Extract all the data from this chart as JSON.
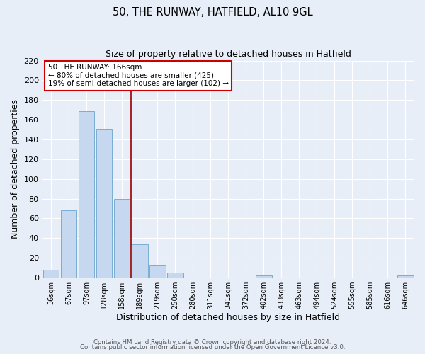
{
  "title": "50, THE RUNWAY, HATFIELD, AL10 9GL",
  "subtitle": "Size of property relative to detached houses in Hatfield",
  "xlabel": "Distribution of detached houses by size in Hatfield",
  "ylabel": "Number of detached properties",
  "bar_labels": [
    "36sqm",
    "67sqm",
    "97sqm",
    "128sqm",
    "158sqm",
    "189sqm",
    "219sqm",
    "250sqm",
    "280sqm",
    "311sqm",
    "341sqm",
    "372sqm",
    "402sqm",
    "433sqm",
    "463sqm",
    "494sqm",
    "524sqm",
    "555sqm",
    "585sqm",
    "616sqm",
    "646sqm"
  ],
  "bar_values": [
    8,
    68,
    169,
    151,
    80,
    34,
    12,
    5,
    0,
    0,
    0,
    0,
    2,
    0,
    0,
    0,
    0,
    0,
    0,
    0,
    2
  ],
  "bar_color": "#c5d8f0",
  "bar_edge_color": "#7aadd4",
  "vline_x": 4.5,
  "vline_color": "#990000",
  "annotation_title": "50 THE RUNWAY: 166sqm",
  "annotation_line1": "← 80% of detached houses are smaller (425)",
  "annotation_line2": "19% of semi-detached houses are larger (102) →",
  "annotation_box_color": "#ffffff",
  "annotation_box_edge": "#cc0000",
  "ylim": [
    0,
    220
  ],
  "yticks": [
    0,
    20,
    40,
    60,
    80,
    100,
    120,
    140,
    160,
    180,
    200,
    220
  ],
  "bg_color": "#e8eef8",
  "footer1": "Contains HM Land Registry data © Crown copyright and database right 2024.",
  "footer2": "Contains public sector information licensed under the Open Government Licence v3.0."
}
